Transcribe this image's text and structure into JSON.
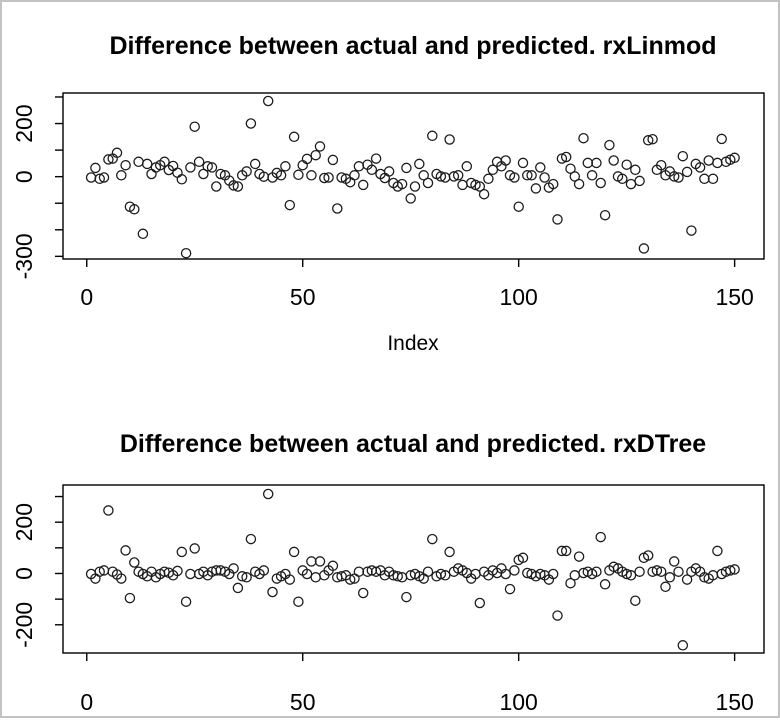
{
  "chart_data": [
    {
      "type": "scatter",
      "title": "Difference between actual and predicted. rxLinmod",
      "xlabel": "Index",
      "marker": "open-circle",
      "grid": false,
      "xlim": [
        -5.5,
        156.8
      ],
      "ylim": [
        -310,
        315
      ],
      "x_ticks": [
        0,
        50,
        100,
        150
      ],
      "y_ticks": [
        {
          "v": 300,
          "label": ""
        },
        {
          "v": 200,
          "label": "200"
        },
        {
          "v": 100,
          "label": ""
        },
        {
          "v": 0,
          "label": "0"
        },
        {
          "v": -100,
          "label": ""
        },
        {
          "v": -200,
          "label": ""
        },
        {
          "v": -300,
          "label": "-300"
        }
      ],
      "x_start": 1,
      "values": [
        -3,
        33,
        -8,
        -3,
        65,
        68,
        90,
        5,
        43,
        -113,
        -123,
        56,
        -215,
        48,
        10,
        35,
        43,
        56,
        25,
        40,
        15,
        -10,
        -288,
        35,
        188,
        56,
        10,
        39,
        35,
        -37,
        10,
        5,
        -15,
        -33,
        -37,
        5,
        20,
        200,
        48,
        10,
        0,
        285,
        -3,
        14,
        5,
        39,
        -107,
        150,
        7,
        43,
        67,
        5,
        81,
        114,
        -5,
        -3,
        63,
        -120,
        -3,
        -8,
        -21,
        5,
        39,
        -31,
        45,
        26,
        68,
        10,
        -5,
        20,
        -24,
        -37,
        -28,
        33,
        -82,
        -37,
        48,
        5,
        -24,
        154,
        10,
        1,
        -3,
        140,
        1,
        5,
        -31,
        39,
        -24,
        -31,
        -37,
        -66,
        -8,
        26,
        56,
        39,
        61,
        5,
        -3,
        -113,
        52,
        5,
        5,
        -44,
        35,
        -3,
        -41,
        -28,
        -161,
        68,
        74,
        30,
        1,
        -28,
        145,
        52,
        5,
        52,
        -24,
        -145,
        119,
        61,
        1,
        -8,
        45,
        -28,
        26,
        -16,
        -270,
        137,
        141,
        26,
        43,
        5,
        20,
        1,
        -3,
        77,
        18,
        -203,
        48,
        35,
        -8,
        61,
        -8,
        52,
        142,
        56,
        64,
        71
      ]
    },
    {
      "type": "scatter",
      "title": "Difference between actual and predicted. rxDTree",
      "xlabel": "",
      "marker": "open-circle",
      "grid": false,
      "xlim": [
        -5.5,
        156.8
      ],
      "ylim": [
        -310,
        345
      ],
      "x_ticks": [
        0,
        50,
        100,
        150
      ],
      "y_ticks": [
        {
          "v": 300,
          "label": ""
        },
        {
          "v": 200,
          "label": "200"
        },
        {
          "v": 100,
          "label": ""
        },
        {
          "v": 0,
          "label": "0"
        },
        {
          "v": -100,
          "label": ""
        },
        {
          "v": -200,
          "label": "-200"
        }
      ],
      "x_start": 1,
      "values": [
        -2,
        -20,
        7,
        12,
        246,
        7,
        -4,
        -20,
        90,
        -96,
        43,
        7,
        -2,
        -11,
        7,
        -15,
        -2,
        7,
        3,
        -7,
        10,
        84,
        -110,
        -2,
        98,
        -2,
        7,
        -7,
        7,
        12,
        12,
        7,
        -2,
        20,
        -56,
        -11,
        -15,
        134,
        7,
        -2,
        12,
        310,
        -72,
        -20,
        -11,
        -2,
        -24,
        84,
        -110,
        12,
        -2,
        47,
        -15,
        47,
        -7,
        12,
        30,
        -15,
        -11,
        -7,
        -24,
        -20,
        7,
        -76,
        7,
        12,
        7,
        12,
        -7,
        7,
        -7,
        -11,
        -15,
        -92,
        -7,
        -2,
        -11,
        -20,
        7,
        134,
        -11,
        -2,
        -7,
        84,
        7,
        20,
        12,
        2,
        -20,
        -2,
        -115,
        7,
        -7,
        12,
        2,
        20,
        -2,
        -61,
        12,
        53,
        61,
        2,
        -2,
        -11,
        -2,
        -7,
        -24,
        -2,
        -164,
        88,
        88,
        -38,
        -7,
        66,
        2,
        7,
        -2,
        7,
        142,
        -42,
        12,
        26,
        20,
        7,
        -2,
        -7,
        -106,
        7,
        61,
        70,
        7,
        12,
        7,
        -52,
        -15,
        47,
        7,
        -280,
        -24,
        7,
        20,
        7,
        -15,
        -20,
        -7,
        88,
        -2,
        7,
        12,
        16
      ]
    }
  ]
}
